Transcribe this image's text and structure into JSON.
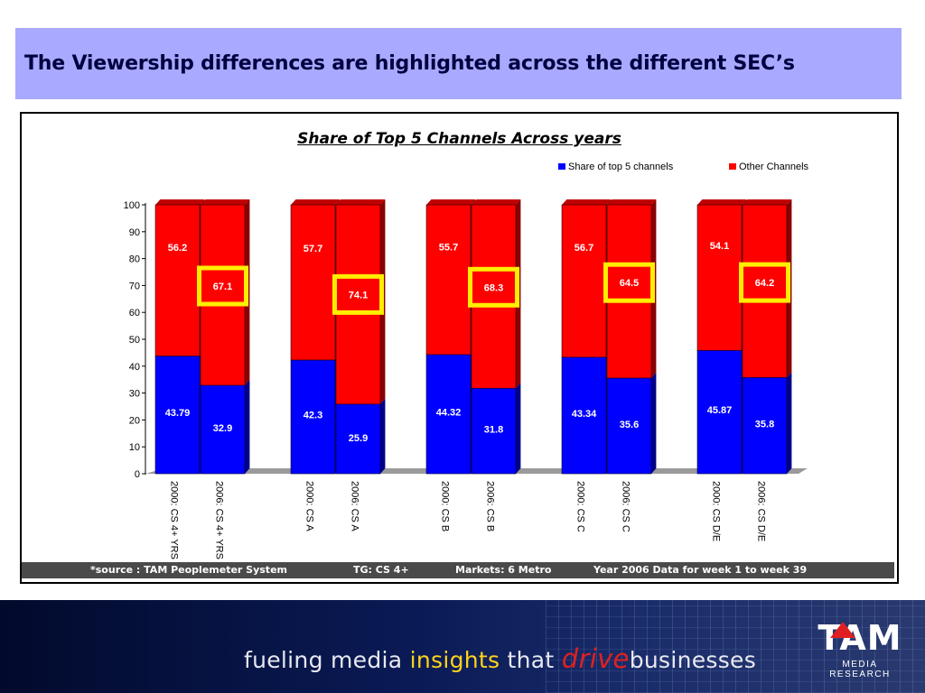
{
  "slide": {
    "title": "The Viewership differences are highlighted across the different SEC’s"
  },
  "chart_data": {
    "type": "bar",
    "stacked": true,
    "title": "Share of Top 5 Channels Across years",
    "categories": [
      "2000: CS 4+ YRS",
      "2006: CS 4+ YRS",
      "2000: CS A",
      "2006: CS A",
      "2000: CS B",
      "2006: CS B",
      "2000: CS C",
      "2006: CS C",
      "2000: CS D/E",
      "2006: CS D/E"
    ],
    "series": [
      {
        "name": "Share of top 5 channels",
        "color": "#0000ff",
        "values": [
          43.79,
          32.9,
          42.3,
          25.9,
          44.32,
          31.8,
          43.34,
          35.6,
          45.87,
          35.8
        ]
      },
      {
        "name": "Other Channels",
        "color": "#ff0000",
        "values": [
          56.2,
          67.1,
          57.7,
          74.1,
          55.7,
          68.3,
          56.7,
          64.5,
          54.1,
          64.2
        ]
      }
    ],
    "labels": {
      "top5": [
        "43.79",
        "32.9",
        "42.3",
        "25.9",
        "44.32",
        "31.8",
        "43.34",
        "35.6",
        "45.87",
        "35.8"
      ],
      "other": [
        "56.2",
        "67.1",
        "57.7",
        "74.1",
        "55.7",
        "68.3",
        "56.7",
        "64.5",
        "54.1",
        "64.2"
      ]
    },
    "highlighted_categories": [
      "2006: CS 4+ YRS",
      "2006: CS A",
      "2006: CS B",
      "2006: CS C",
      "2006: CS D/E"
    ],
    "highlight_color": "#ffee00",
    "ylim": [
      0,
      100
    ],
    "yticks": [
      "0",
      "10",
      "20",
      "30",
      "40",
      "50",
      "60",
      "70",
      "80",
      "90",
      "100"
    ],
    "legend_position": "top-right",
    "grid": false
  },
  "footer": {
    "source": "*source : TAM Peoplemeter System",
    "tg": "TG: CS 4+",
    "markets": "Markets: 6 Metro",
    "period": "Year 2006 Data for week 1 to week 39"
  },
  "banner": {
    "slogan_part1": "fueling media ",
    "slogan_insights": "insights",
    "slogan_part2": " that ",
    "slogan_drive": "drive",
    "slogan_part3": "businesses",
    "logo_text": "TAM",
    "logo_subtext": "MEDIA RESEARCH"
  }
}
